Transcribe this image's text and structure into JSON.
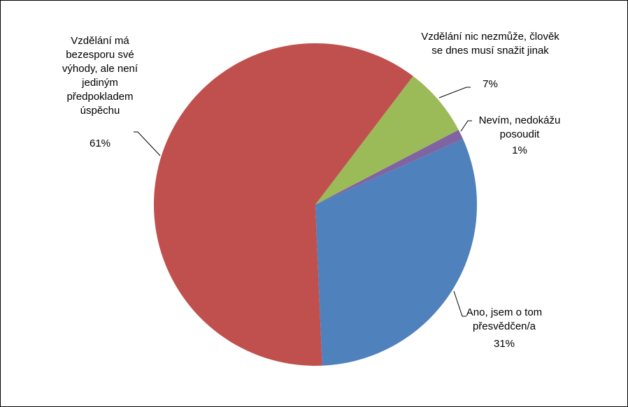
{
  "chart_data": {
    "type": "pie",
    "categories": [
      "Ano, jsem o tom přesvědčen/a",
      "Vzdělání má bezesporu své výhody, ale není jediným předpokladem úspěchu",
      "Vzdělání nic nezmůže, člověk se dnes musí snažit jinak",
      "Nevím, nedokážu posoudit"
    ],
    "values": [
      31,
      61,
      7,
      1
    ],
    "value_labels": [
      "31%",
      "61%",
      "7%",
      "1%"
    ],
    "colors": [
      "#4f81bd",
      "#c0504d",
      "#9bbb59",
      "#8064a2"
    ]
  }
}
